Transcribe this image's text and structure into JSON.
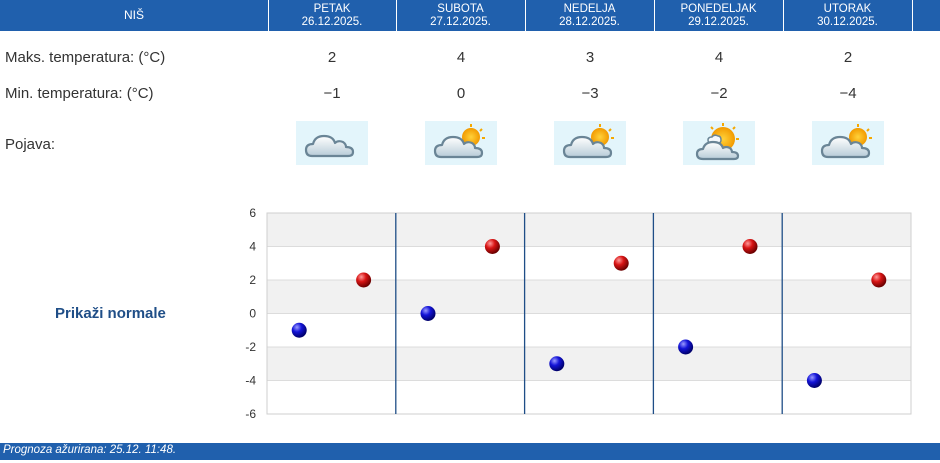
{
  "header": {
    "city": "NIŠ",
    "days": [
      {
        "name": "PETAK",
        "date": "26.12.2025."
      },
      {
        "name": "SUBOTA",
        "date": "27.12.2025."
      },
      {
        "name": "NEDELJA",
        "date": "28.12.2025."
      },
      {
        "name": "PONEDELJAK",
        "date": "29.12.2025."
      },
      {
        "name": "UTORAK",
        "date": "30.12.2025."
      }
    ]
  },
  "rows": {
    "max_label": "Maks. temperatura: (°C)",
    "min_label": "Min. temperatura: (°C)",
    "phenomenon_label": "Pojava:",
    "max_values": [
      "2",
      "4",
      "3",
      "4",
      "2"
    ],
    "min_values": [
      "−1",
      "0",
      "−3",
      "−2",
      "−4"
    ],
    "icons": [
      "cloud-icon",
      "partly-cloudy-icon",
      "partly-cloudy-icon",
      "sun-cloud-icon",
      "partly-cloudy-icon"
    ]
  },
  "normals_link": "Prikaži normale",
  "chart_data": {
    "type": "scatter",
    "categories": [
      "26.12.2025.",
      "27.12.2025.",
      "28.12.2025.",
      "29.12.2025.",
      "30.12.2025."
    ],
    "series": [
      {
        "values": [
          -1,
          0,
          -3,
          -2,
          -4
        ],
        "color": "#1010c0"
      },
      {
        "values": [
          2,
          4,
          3,
          4,
          2
        ],
        "color": "#c01010"
      }
    ],
    "ylim": [
      -6,
      6
    ],
    "yticks": [
      "6",
      "4",
      "2",
      "0",
      "-2",
      "-4",
      "-6"
    ],
    "grid": true
  },
  "footer": {
    "text": "Prognoza ažurirana:  25.12. 11:48."
  },
  "colors": {
    "header_bg": "#2060ad",
    "min_marker": "#1010c0",
    "max_marker": "#c01010"
  }
}
